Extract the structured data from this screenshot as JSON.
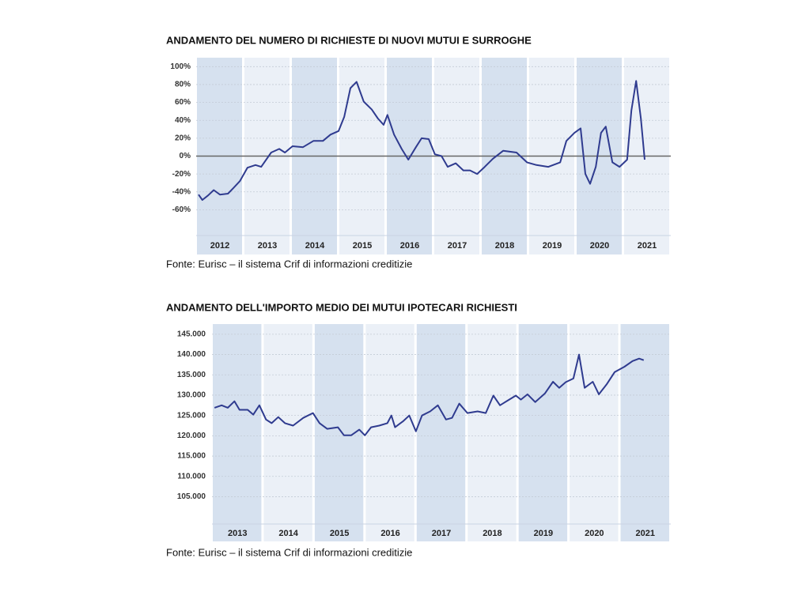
{
  "chart_data": [
    {
      "type": "line",
      "title": "ANDAMENTO DEL NUMERO DI RICHIESTE DI NUOVI MUTUI E SURROGHE",
      "note": "Fonte: Eurisc – il sistema Crif di informazioni creditizie",
      "years": [
        "2012",
        "2013",
        "2014",
        "2015",
        "2016",
        "2017",
        "2018",
        "2019",
        "2020",
        "2021"
      ],
      "x": [
        2012.05,
        2012.13,
        2012.25,
        2012.37,
        2012.5,
        2012.67,
        2012.78,
        2012.92,
        2013.08,
        2013.25,
        2013.37,
        2013.58,
        2013.75,
        2013.87,
        2014.03,
        2014.25,
        2014.47,
        2014.67,
        2014.83,
        2015.0,
        2015.12,
        2015.25,
        2015.38,
        2015.53,
        2015.7,
        2015.83,
        2015.95,
        2016.03,
        2016.17,
        2016.33,
        2016.47,
        2016.63,
        2016.75,
        2016.9,
        2017.03,
        2017.17,
        2017.3,
        2017.47,
        2017.63,
        2017.77,
        2017.92,
        2018.08,
        2018.25,
        2018.47,
        2018.75,
        2018.97,
        2019.17,
        2019.42,
        2019.67,
        2019.8,
        2019.97,
        2020.1,
        2020.2,
        2020.3,
        2020.42,
        2020.53,
        2020.63,
        2020.77,
        2020.92,
        2021.08,
        2021.17,
        2021.27,
        2021.37,
        2021.45
      ],
      "values": [
        -43,
        -49,
        -44,
        -38,
        -43,
        -42,
        -36,
        -28,
        -13,
        -10,
        -12,
        4,
        8,
        4,
        11,
        10,
        17,
        17,
        24,
        28,
        44,
        76,
        83,
        61,
        52,
        42,
        35,
        46,
        24,
        8,
        -4,
        10,
        20,
        19,
        2,
        0,
        -12,
        -8,
        -16,
        -16,
        -20,
        -12,
        -3,
        6,
        4,
        -7,
        -10,
        -12,
        -7,
        17,
        26,
        31,
        -20,
        -31,
        -12,
        26,
        33,
        -7,
        -12,
        -4,
        51,
        84,
        42,
        -4
      ],
      "xlim": [
        2012,
        2022
      ],
      "ylim": [
        -110,
        110
      ],
      "yticks": [
        {
          "value": 100,
          "label": "100%"
        },
        {
          "value": 80,
          "label": "80%"
        },
        {
          "value": 60,
          "label": "60%"
        },
        {
          "value": 40,
          "label": "40%"
        },
        {
          "value": 20,
          "label": "20%"
        },
        {
          "value": 0,
          "label": "0%"
        },
        {
          "value": -20,
          "label": "-20%"
        },
        {
          "value": -40,
          "label": "-40%"
        },
        {
          "value": -60,
          "label": "-60%"
        }
      ],
      "color": "#2f3b8f",
      "grid": true
    },
    {
      "type": "line",
      "title": "ANDAMENTO DELL'IMPORTO MEDIO DEI MUTUI IPOTECARI RICHIESTI",
      "note": "Fonte: Eurisc – il sistema Crif di informazioni creditizie",
      "years": [
        "2013",
        "2014",
        "2015",
        "2016",
        "2017",
        "2018",
        "2019",
        "2020",
        "2021"
      ],
      "x": [
        2013.05,
        2013.19,
        2013.31,
        2013.44,
        2013.54,
        2013.7,
        2013.81,
        2013.93,
        2014.06,
        2014.17,
        2014.3,
        2014.43,
        2014.59,
        2014.79,
        2014.98,
        2015.11,
        2015.26,
        2015.47,
        2015.59,
        2015.73,
        2015.89,
        2016.0,
        2016.12,
        2016.28,
        2016.44,
        2016.52,
        2016.59,
        2016.75,
        2016.87,
        2017.0,
        2017.12,
        2017.28,
        2017.43,
        2017.59,
        2017.71,
        2017.85,
        2018.01,
        2018.21,
        2018.37,
        2018.52,
        2018.65,
        2018.83,
        2018.96,
        2019.06,
        2019.19,
        2019.34,
        2019.53,
        2019.69,
        2019.81,
        2019.94,
        2020.09,
        2020.2,
        2020.31,
        2020.47,
        2020.59,
        2020.75,
        2020.9,
        2021.09,
        2021.25,
        2021.38,
        2021.47
      ],
      "values": [
        126900,
        127500,
        126900,
        128500,
        126400,
        126400,
        125200,
        127500,
        124000,
        123100,
        124600,
        123100,
        122500,
        124400,
        125600,
        123100,
        121700,
        122100,
        120100,
        120100,
        121500,
        120100,
        122100,
        122500,
        123100,
        125000,
        122100,
        123600,
        125000,
        121100,
        125000,
        126000,
        127500,
        124000,
        124400,
        127900,
        125600,
        126000,
        125600,
        129900,
        127500,
        128900,
        129900,
        128900,
        130200,
        128300,
        130400,
        133300,
        131800,
        133200,
        134100,
        140000,
        131800,
        133300,
        130200,
        132800,
        135700,
        137000,
        138400,
        139000,
        138600
      ],
      "xlim": [
        2013,
        2022
      ],
      "ylim": [
        94000,
        147500
      ],
      "yticks": [
        {
          "value": 145000,
          "label": "145.000"
        },
        {
          "value": 140000,
          "label": "140.000"
        },
        {
          "value": 135000,
          "label": "135.000"
        },
        {
          "value": 130000,
          "label": "130.000"
        },
        {
          "value": 125000,
          "label": "125.000"
        },
        {
          "value": 120000,
          "label": "120.000"
        },
        {
          "value": 115000,
          "label": "115.000"
        },
        {
          "value": 110000,
          "label": "110.000"
        },
        {
          "value": 105000,
          "label": "105.000"
        }
      ],
      "color": "#2f3b8f",
      "grid": true
    }
  ]
}
